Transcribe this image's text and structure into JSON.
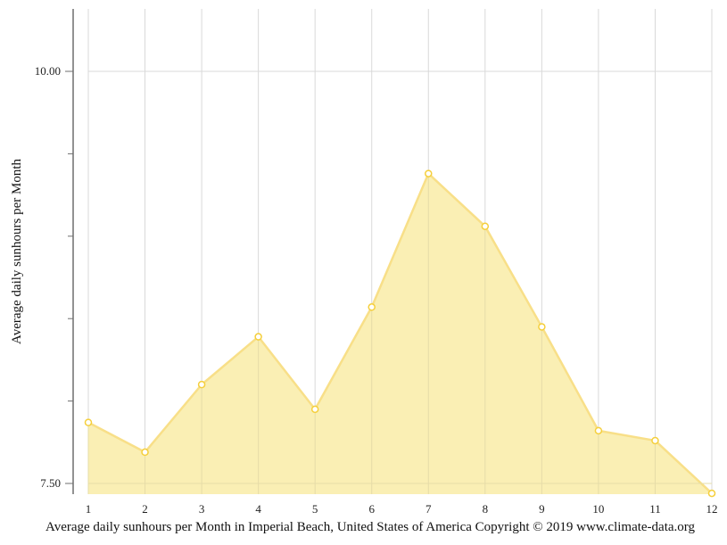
{
  "chart_data": {
    "type": "area",
    "title": "",
    "caption": "Average daily sunhours per Month in Imperial Beach, United States of America Copyright © 2019 www.climate-data.org",
    "xlabel": "",
    "ylabel": "Average daily sunhours per Month",
    "categories": [
      "1",
      "2",
      "3",
      "4",
      "5",
      "6",
      "7",
      "8",
      "9",
      "10",
      "11",
      "12"
    ],
    "series": [
      {
        "name": "Average daily sunhours",
        "values": [
          7.87,
          7.69,
          8.1,
          8.39,
          7.95,
          8.57,
          9.38,
          9.06,
          8.45,
          7.82,
          7.76,
          7.44
        ]
      }
    ],
    "ylim": [
      7.44,
      10.38
    ],
    "y_ticks_labeled": [
      {
        "value": 7.5,
        "label": "7.50"
      },
      {
        "value": 10.0,
        "label": "10.00"
      }
    ],
    "y_minor_ticks": [
      8.0,
      8.5,
      9.0,
      9.5
    ],
    "grid": {
      "x": true,
      "y": true
    },
    "legend": null,
    "colors": {
      "fill": "#faeeb0",
      "line": "#f8df88",
      "marker_stroke": "#f5cf3c",
      "marker_fill": "#ffffff",
      "grid": "#d9d9d9",
      "axis": "#6e6e6e"
    }
  }
}
